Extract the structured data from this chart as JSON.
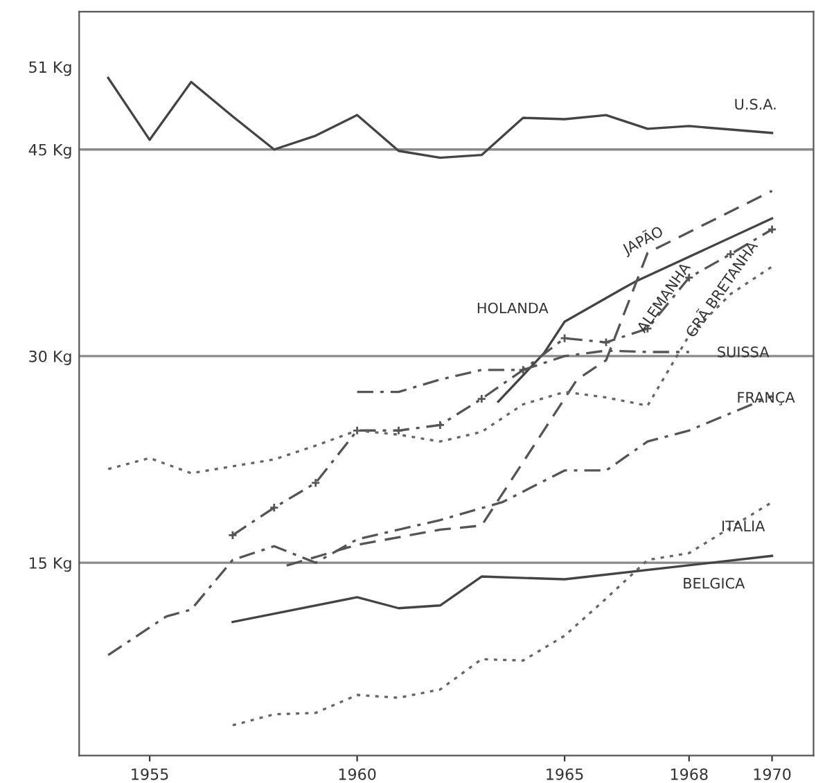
{
  "chart_data": {
    "type": "line",
    "xlim": [
      1953.3,
      1971.0
    ],
    "ylim": [
      1,
      55
    ],
    "xticks": [
      1955,
      1960,
      1965,
      1968,
      1970
    ],
    "yticks": [
      {
        "value": 15,
        "label": "15 Kg"
      },
      {
        "value": 30,
        "label": "30 Kg"
      },
      {
        "value": 45,
        "label": "45 Kg"
      },
      {
        "value": 51,
        "label": "51 Kg"
      }
    ],
    "grid": false,
    "legend": false,
    "marker": "none",
    "ref_lines": [
      {
        "axis": "y",
        "value": 15,
        "color": "#8a8a8a"
      },
      {
        "axis": "y",
        "value": 30,
        "color": "#8a8a8a"
      },
      {
        "axis": "y",
        "value": 45,
        "color": "#8a8a8a"
      }
    ],
    "series": [
      {
        "name": "U.S.A.",
        "color": "#444444",
        "line_style": "solid",
        "x": [
          1954,
          1955,
          1956,
          1957,
          1958,
          1959,
          1960,
          1961,
          1962,
          1963,
          1964,
          1965,
          1966,
          1967,
          1968,
          1970
        ],
        "values": [
          50.2,
          45.7,
          49.9,
          47.4,
          45.0,
          46.0,
          47.5,
          44.9,
          44.4,
          44.6,
          47.3,
          47.2,
          47.5,
          46.5,
          46.7,
          46.2
        ]
      },
      {
        "name": "HOLANDA",
        "color": "#444444",
        "line_style": "solid",
        "x": [
          1963.4,
          1964.5,
          1965,
          1966.4,
          1966.7,
          1970
        ],
        "values": [
          26.7,
          30.2,
          32.5,
          34.9,
          35.4,
          40.0
        ]
      },
      {
        "name": "JAPÃO",
        "color": "#555555",
        "line_style": "dashed",
        "x": [
          1958.3,
          1960,
          1962,
          1963,
          1965.3,
          1966,
          1967,
          1970
        ],
        "values": [
          14.8,
          16.3,
          17.4,
          17.7,
          28.3,
          29.7,
          37.5,
          42.0
        ]
      },
      {
        "name": "ALEMANHA",
        "color": "#555555",
        "line_style": "dashdot",
        "marker": "cross",
        "x": [
          1957,
          1958,
          1959,
          1960,
          1961,
          1962,
          1963,
          1964,
          1965,
          1966,
          1967,
          1968,
          1969,
          1970
        ],
        "values": [
          17.0,
          19.0,
          20.8,
          24.6,
          24.6,
          25.0,
          26.9,
          29.0,
          31.3,
          31.0,
          32.0,
          35.7,
          37.4,
          39.2
        ]
      },
      {
        "name": "GRÃ BRETANHA",
        "color": "#666666",
        "line_style": "dotted",
        "x": [
          1954,
          1955,
          1956,
          1957,
          1958,
          1959,
          1960,
          1961,
          1962,
          1963,
          1964,
          1965,
          1966,
          1967,
          1968,
          1969,
          1970
        ],
        "values": [
          21.8,
          22.6,
          21.5,
          22.0,
          22.5,
          23.5,
          24.6,
          24.3,
          23.8,
          24.5,
          26.5,
          27.4,
          27.0,
          26.4,
          31.5,
          34.5,
          36.5
        ]
      },
      {
        "name": "SUISSA",
        "color": "#555555",
        "line_style": "dashdot",
        "x": [
          1960,
          1961,
          1962,
          1963,
          1964,
          1965,
          1966,
          1967,
          1968
        ],
        "values": [
          27.4,
          27.4,
          28.3,
          29.0,
          29.0,
          30.0,
          30.4,
          30.3,
          30.3
        ]
      },
      {
        "name": "FRANÇA",
        "color": "#555555",
        "line_style": "dashdot",
        "x": [
          1954,
          1955.4,
          1956,
          1957,
          1958,
          1959,
          1960,
          1962,
          1963.5,
          1965,
          1966,
          1967,
          1968,
          1970
        ],
        "values": [
          8.3,
          11.1,
          11.6,
          15.2,
          16.2,
          15.0,
          16.7,
          18.1,
          19.4,
          21.7,
          21.7,
          23.8,
          24.6,
          27.1
        ]
      },
      {
        "name": "ITALIA",
        "color": "#666666",
        "line_style": "dotted",
        "x": [
          1957,
          1958,
          1959,
          1960,
          1961,
          1962,
          1963,
          1964,
          1965,
          1966,
          1967,
          1968,
          1970
        ],
        "values": [
          3.2,
          4.0,
          4.1,
          5.4,
          5.2,
          5.8,
          8.0,
          7.9,
          9.7,
          12.4,
          15.2,
          15.7,
          19.4
        ]
      },
      {
        "name": "BELGICA",
        "color": "#444444",
        "line_style": "solid",
        "x": [
          1957,
          1960,
          1961,
          1962,
          1963,
          1965,
          1970
        ],
        "values": [
          10.7,
          12.5,
          11.7,
          11.9,
          14.0,
          13.8,
          15.5
        ]
      }
    ]
  }
}
